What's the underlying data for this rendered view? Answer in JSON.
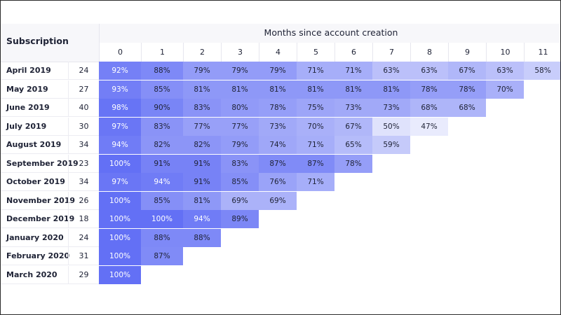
{
  "chart_data": {
    "type": "heatmap",
    "title": "Months since account creation",
    "row_header": "Subscription",
    "x": [
      "0",
      "1",
      "2",
      "3",
      "4",
      "5",
      "6",
      "7",
      "8",
      "9",
      "10",
      "11"
    ],
    "rows": [
      {
        "label": "April 2019",
        "count": "24",
        "values": [
          92,
          88,
          79,
          79,
          79,
          71,
          71,
          63,
          63,
          67,
          63,
          58
        ]
      },
      {
        "label": "May 2019",
        "count": "27",
        "values": [
          93,
          85,
          81,
          81,
          81,
          81,
          81,
          81,
          78,
          78,
          70
        ]
      },
      {
        "label": "June 2019",
        "count": "40",
        "values": [
          98,
          90,
          83,
          80,
          78,
          75,
          73,
          73,
          68,
          68
        ]
      },
      {
        "label": "July 2019",
        "count": "30",
        "values": [
          97,
          83,
          77,
          77,
          73,
          70,
          67,
          50,
          47
        ]
      },
      {
        "label": "August 2019",
        "count": "34",
        "values": [
          94,
          82,
          82,
          79,
          74,
          71,
          65,
          59
        ]
      },
      {
        "label": "September 2019",
        "count": "23",
        "values": [
          100,
          91,
          91,
          83,
          87,
          87,
          78
        ]
      },
      {
        "label": "October 2019",
        "count": "34",
        "values": [
          97,
          94,
          91,
          85,
          76,
          71
        ]
      },
      {
        "label": "November 2019",
        "count": "26",
        "values": [
          100,
          85,
          81,
          69,
          69
        ]
      },
      {
        "label": "December 2019",
        "count": "18",
        "values": [
          100,
          100,
          94,
          89
        ]
      },
      {
        "label": "January 2020",
        "count": "24",
        "values": [
          100,
          88,
          88
        ]
      },
      {
        "label": "February 2020",
        "count": "31",
        "values": [
          100,
          87
        ]
      },
      {
        "label": "March 2020",
        "count": "29",
        "values": [
          100
        ]
      }
    ],
    "value_suffix": "%",
    "colors": {
      "high": "#6370f5",
      "low": "#f2f3fd"
    }
  }
}
